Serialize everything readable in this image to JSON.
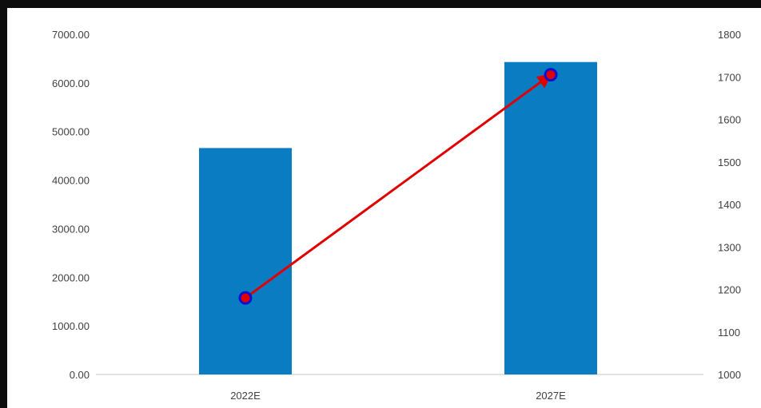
{
  "chart_data": {
    "type": "bar",
    "categories": [
      "2022E",
      "2027E"
    ],
    "series": [
      {
        "type": "bar",
        "axis": "left",
        "color": "#0a7cc1",
        "values": [
          4660,
          6430
        ]
      },
      {
        "type": "line",
        "axis": "right",
        "color": "#e00000",
        "marker_color": "#1010d0",
        "values": [
          1180,
          1705
        ]
      }
    ],
    "y_left": {
      "ylim": [
        0,
        7000
      ],
      "ticks": [
        "0.00",
        "1000.00",
        "2000.00",
        "3000.00",
        "4000.00",
        "5000.00",
        "6000.00",
        "7000.00"
      ]
    },
    "y_right": {
      "ylim": [
        1000,
        1800
      ],
      "ticks": [
        "1000",
        "1100",
        "1200",
        "1300",
        "1400",
        "1500",
        "1600",
        "1700",
        "1800"
      ]
    },
    "title": "",
    "xlabel": "",
    "ylabel": "",
    "grid": false,
    "legend": "none",
    "arrow": true
  }
}
